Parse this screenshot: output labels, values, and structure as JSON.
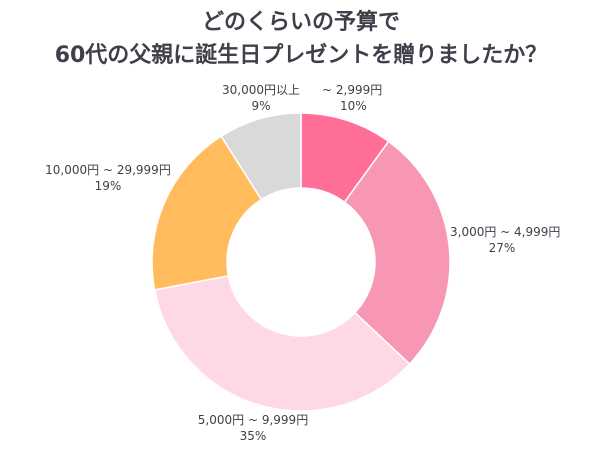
{
  "title_lines": [
    "どのくらいの予算で",
    "60代の父親に誕生日プレゼントを贈りましたか？"
  ],
  "chart_data": {
    "type": "pie",
    "title": "どのくらいの予算で60代の父親に誕生日プレゼントを贈りましたか？",
    "categories": [
      "~ 2,999円",
      "3,000円 ~ 4,999円",
      "5,000円 ~ 9,999円",
      "10,000円 ~ 29,999円",
      "30,000円以上"
    ],
    "values": [
      10,
      27,
      35,
      19,
      9
    ],
    "value_labels": [
      "10%",
      "27%",
      "35%",
      "19%",
      "9%"
    ],
    "colors": [
      "#ff6e96",
      "#f797b4",
      "#ffd8e6",
      "#ffbb5c",
      "#d9d9d9"
    ],
    "donut": true,
    "start_angle": "top",
    "direction": "clockwise"
  }
}
